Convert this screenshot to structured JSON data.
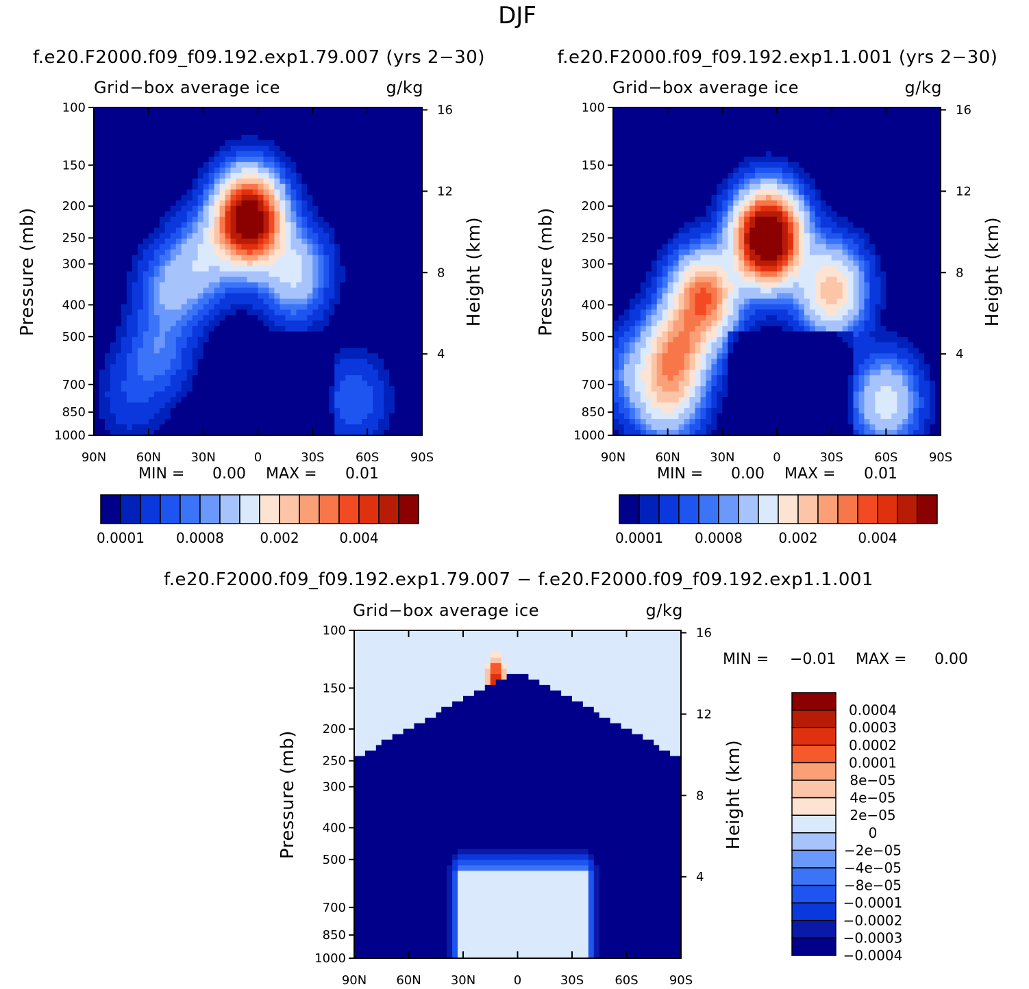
{
  "figure": {
    "title": "DJF"
  },
  "colors": {
    "abs_palette": [
      "#00008b",
      "#0022bb",
      "#0a38dd",
      "#1e54f0",
      "#3c74f8",
      "#6b98fb",
      "#a7c3fc",
      "#dbe9fd",
      "#fde3d2",
      "#fcc5a8",
      "#fa9f76",
      "#f7764a",
      "#f24a22",
      "#e0310e",
      "#b81c06",
      "#8b0000"
    ],
    "diff_palette": [
      "#00008b",
      "#0a1aa8",
      "#0a38dd",
      "#1e54f0",
      "#3c74f8",
      "#6b98fb",
      "#a7c3fc",
      "#dbe9fd",
      "#fde3d2",
      "#fcc5a8",
      "#fa9f76",
      "#f75a2a",
      "#e0310e",
      "#b81c06",
      "#8b0000"
    ]
  },
  "chart_data": [
    {
      "id": "left",
      "type": "heatmap",
      "subtitle": "f.e20.F2000.f09_f09.192.exp1.79.007 (yrs 2−30)",
      "title": "Grid−box average ice",
      "units": "g/kg",
      "ylabel": "Pressure (mb)",
      "ylabel2": "Height (km)",
      "x_ticks": [
        "90N",
        "60N",
        "30N",
        "0",
        "30S",
        "60S",
        "90S"
      ],
      "y_ticks": [
        "100",
        "150",
        "200",
        "250",
        "300",
        "400",
        "500",
        "700",
        "850",
        "1000"
      ],
      "y2_ticks": [
        "16",
        "12",
        "8",
        "4"
      ],
      "xlim": [
        90,
        -90
      ],
      "ylim": [
        1000,
        100
      ],
      "min_label": "MIN =",
      "min_value": "0.00",
      "max_label": "MAX =",
      "max_value": "0.01",
      "colorbar_labels": [
        "0.0001",
        "0.0008",
        "0.002",
        "0.004"
      ],
      "features": [
        {
          "lat": 5,
          "p": 220,
          "amp": 0.0075
        },
        {
          "lat": -20,
          "p": 320,
          "amp": 0.0016
        },
        {
          "lat": 47,
          "p": 360,
          "amp": 0.001
        },
        {
          "lat": 30,
          "p": 290,
          "amp": 0.0012
        },
        {
          "lat": 55,
          "p": 560,
          "amp": 0.0007
        },
        {
          "lat": -53,
          "p": 780,
          "amp": 0.0006
        },
        {
          "lat": 70,
          "p": 760,
          "amp": 0.00035
        }
      ]
    },
    {
      "id": "right",
      "type": "heatmap",
      "subtitle": "f.e20.F2000.f09_f09.192.exp1.1.001 (yrs 2−30)",
      "title": "Grid−box average ice",
      "units": "g/kg",
      "ylabel": "Pressure (mb)",
      "ylabel2": "Height (km)",
      "x_ticks": [
        "90N",
        "60N",
        "30N",
        "0",
        "30S",
        "60S",
        "90S"
      ],
      "y_ticks": [
        "100",
        "150",
        "200",
        "250",
        "300",
        "400",
        "500",
        "700",
        "850",
        "1000"
      ],
      "y2_ticks": [
        "16",
        "12",
        "8",
        "4"
      ],
      "xlim": [
        90,
        -90
      ],
      "ylim": [
        1000,
        100
      ],
      "min_label": "MIN =",
      "min_value": "0.00",
      "max_label": "MAX =",
      "max_value": "0.01",
      "colorbar_labels": [
        "0.0001",
        "0.0008",
        "0.002",
        "0.004"
      ],
      "features": [
        {
          "lat": 5,
          "p": 250,
          "amp": 0.0085
        },
        {
          "lat": -30,
          "p": 360,
          "amp": 0.0028
        },
        {
          "lat": 40,
          "p": 380,
          "amp": 0.004
        },
        {
          "lat": 55,
          "p": 550,
          "amp": 0.003
        },
        {
          "lat": 60,
          "p": 760,
          "amp": 0.002
        },
        {
          "lat": -60,
          "p": 790,
          "amp": 0.0018
        },
        {
          "lat": 78,
          "p": 650,
          "amp": 0.0008
        }
      ]
    },
    {
      "id": "diff",
      "type": "heatmap",
      "subtitle": "f.e20.F2000.f09_f09.192.exp1.79.007 − f.e20.F2000.f09_f09.192.exp1.1.001",
      "title": "Grid−box average ice",
      "units": "g/kg",
      "ylabel": "Pressure (mb)",
      "ylabel2": "Height (km)",
      "x_ticks": [
        "90N",
        "60N",
        "30N",
        "0",
        "30S",
        "60S",
        "90S"
      ],
      "y_ticks": [
        "100",
        "150",
        "200",
        "250",
        "300",
        "400",
        "500",
        "700",
        "850",
        "1000"
      ],
      "y2_ticks": [
        "16",
        "12",
        "8",
        "4"
      ],
      "xlim": [
        90,
        -90
      ],
      "ylim": [
        1000,
        100
      ],
      "min_label": "MIN =",
      "min_value": "−0.01",
      "max_label": "MAX =",
      "max_value": "0.00",
      "colorbar_labels": [
        "0.0004",
        "0.0003",
        "0.0002",
        "0.0001",
        "8e−05",
        "4e−05",
        "2e−05",
        "0",
        "−2e−05",
        "−4e−05",
        "−8e−05",
        "−0.0001",
        "−0.0002",
        "−0.0003",
        "−0.0004"
      ]
    }
  ]
}
